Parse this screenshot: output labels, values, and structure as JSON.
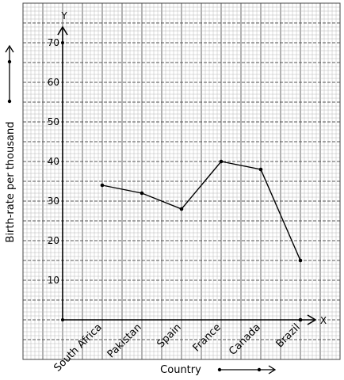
{
  "chart_data": {
    "type": "line",
    "categories": [
      "South Africa",
      "Pakistan",
      "Spain",
      "France",
      "Canada",
      "Brazil"
    ],
    "values": [
      34,
      32,
      28,
      40,
      38,
      15
    ],
    "xlabel": "Country",
    "ylabel": "Birth-rate per thousand",
    "x_axis_letter": "X",
    "y_axis_letter": "Y",
    "yticks": [
      10,
      20,
      30,
      40,
      50,
      60,
      70
    ],
    "ylim": [
      0,
      70
    ],
    "grid": true,
    "line_color": "#000000",
    "grid_minor_color": "#b8b8b8",
    "grid_major_color": "#555555"
  }
}
